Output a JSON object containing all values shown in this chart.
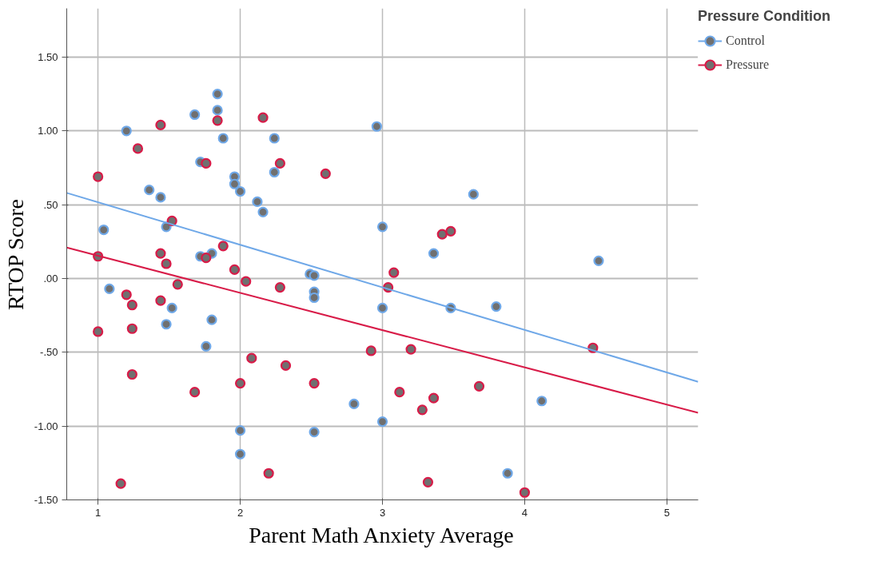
{
  "chart_data": {
    "type": "scatter",
    "xlabel": "Parent Math Anxiety Average",
    "ylabel": "RTOP Score",
    "legend_title": "Pressure Condition",
    "xlim": [
      0.78,
      5.22
    ],
    "ylim": [
      -1.5,
      1.83
    ],
    "xticks": [
      1,
      2,
      3,
      4,
      5
    ],
    "yticks": [
      {
        "value": -1.5,
        "label": "-1.50"
      },
      {
        "value": -1.0,
        "label": "-1.00"
      },
      {
        "value": -0.5,
        "label": "-.50"
      },
      {
        "value": 0,
        "label": ".00"
      },
      {
        "value": 0.5,
        "label": ".50"
      },
      {
        "value": 1.0,
        "label": "1.00"
      },
      {
        "value": 1.5,
        "label": "1.50"
      }
    ],
    "grid": true,
    "legend": "top right",
    "marker": "circle",
    "series": [
      {
        "name": "Control",
        "color": "#6fa8e8",
        "x": [
          1.2,
          1.68,
          1.84,
          1.84,
          1.88,
          1.72,
          1.96,
          1.96,
          2.0,
          2.12,
          2.16,
          2.24,
          2.24,
          1.36,
          1.44,
          1.04,
          1.48,
          1.72,
          1.8,
          1.08,
          1.52,
          1.48,
          1.8,
          1.76,
          2.0,
          2.0,
          2.49,
          2.52,
          2.52,
          2.52,
          2.96,
          3.0,
          3.0,
          2.8,
          3.0,
          2.52,
          3.36,
          3.64,
          3.48,
          3.8,
          4.12,
          3.88,
          4.52
        ],
        "values": [
          1.0,
          1.11,
          1.25,
          1.14,
          0.95,
          0.79,
          0.69,
          0.64,
          0.59,
          0.52,
          0.45,
          0.95,
          0.72,
          0.6,
          0.55,
          0.33,
          0.35,
          0.15,
          0.17,
          -0.07,
          -0.2,
          -0.31,
          -0.28,
          -0.46,
          -1.03,
          -1.19,
          0.03,
          0.02,
          -0.09,
          -0.13,
          1.03,
          0.35,
          -0.2,
          -0.85,
          -0.97,
          -1.04,
          0.17,
          0.57,
          -0.2,
          -0.19,
          -0.83,
          -1.32,
          0.12
        ]
      },
      {
        "name": "Pressure",
        "color": "#d81b48",
        "x": [
          1.0,
          1.0,
          1.0,
          1.28,
          1.44,
          1.84,
          1.76,
          2.16,
          2.28,
          2.6,
          1.52,
          1.44,
          1.48,
          1.76,
          1.88,
          1.96,
          2.04,
          1.2,
          1.24,
          1.44,
          1.56,
          1.24,
          1.24,
          1.68,
          2.0,
          2.08,
          2.32,
          2.28,
          1.16,
          2.2,
          2.52,
          2.92,
          3.04,
          3.08,
          3.42,
          3.48,
          3.2,
          3.12,
          3.28,
          3.36,
          3.32,
          3.68,
          4.0,
          4.48
        ],
        "values": [
          0.69,
          0.15,
          -0.36,
          0.88,
          1.04,
          1.07,
          0.78,
          1.09,
          0.78,
          0.71,
          0.39,
          0.17,
          0.1,
          0.14,
          0.22,
          0.06,
          -0.02,
          -0.11,
          -0.18,
          -0.15,
          -0.04,
          -0.34,
          -0.65,
          -0.77,
          -0.71,
          -0.54,
          -0.59,
          -0.06,
          -1.39,
          -1.32,
          -0.71,
          -0.49,
          -0.06,
          0.04,
          0.3,
          0.32,
          -0.48,
          -0.77,
          -0.89,
          -0.81,
          -1.38,
          -0.73,
          -1.45,
          -0.47
        ]
      },
      {
        "type": "line",
        "marker": "none",
        "color": "#6fa8e8",
        "x": [
          0.78,
          5.22
        ],
        "values": [
          0.58,
          -0.7
        ]
      },
      {
        "type": "line",
        "marker": "none",
        "color": "#d81b48",
        "x": [
          0.78,
          5.22
        ],
        "values": [
          0.21,
          -0.91
        ]
      }
    ]
  }
}
